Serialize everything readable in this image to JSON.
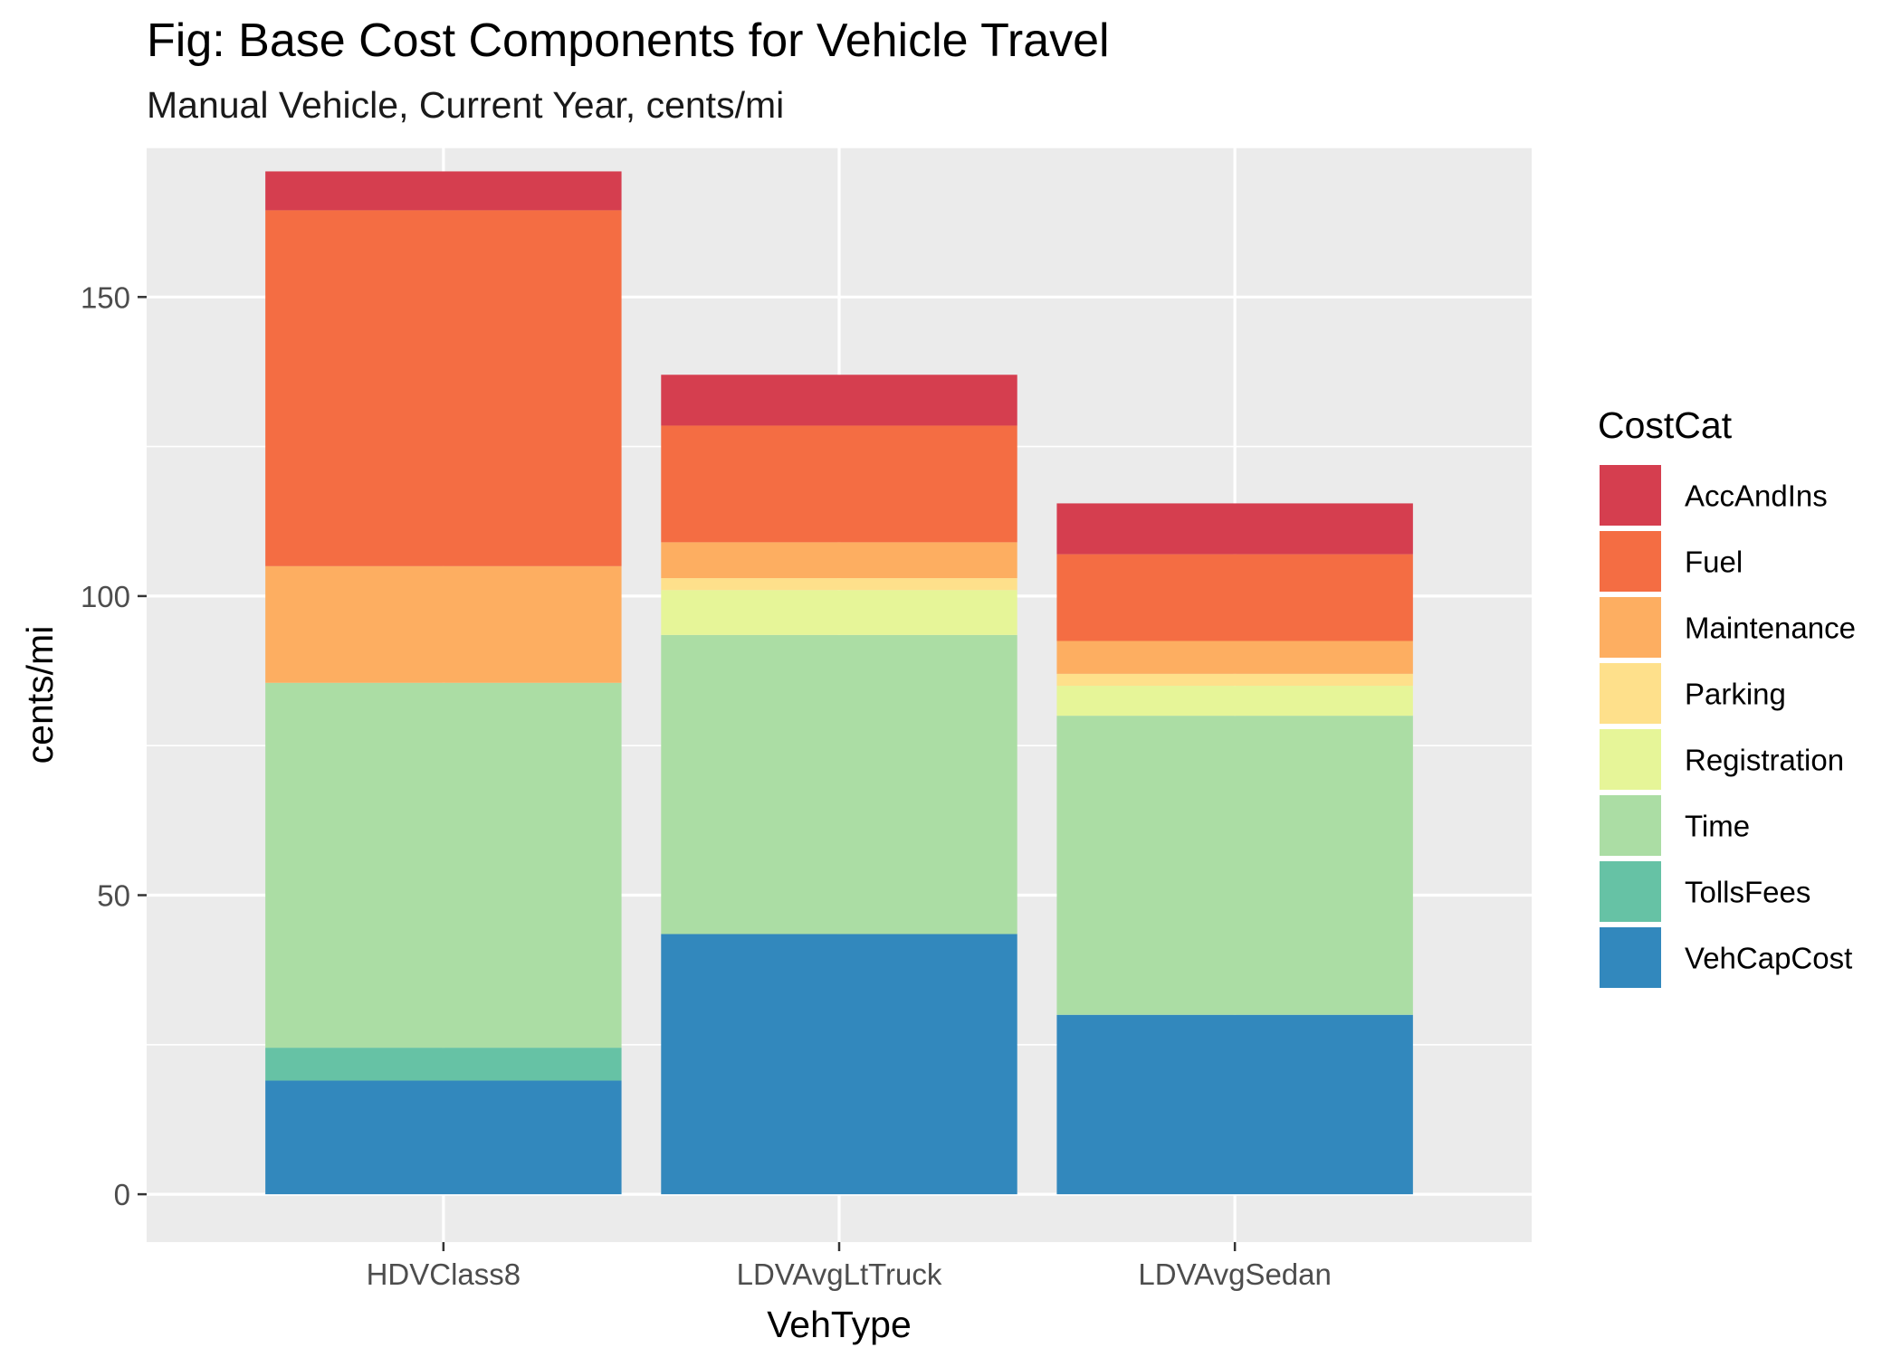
{
  "title": "Fig: Base Cost Components for Vehicle Travel",
  "subtitle": "Manual Vehicle, Current Year, cents/mi",
  "chart_data": {
    "type": "bar",
    "stacked": true,
    "xlabel": "VehType",
    "ylabel": "cents/mi",
    "ylim": [
      -8,
      175
    ],
    "yticks": [
      0,
      50,
      100,
      150
    ],
    "ytick_labels": [
      "0",
      "50",
      "100",
      "150"
    ],
    "grid": true,
    "legend_position": "right",
    "legend_title": "CostCat",
    "categories": [
      "HDVClass8",
      "LDVAvgLtTruck",
      "LDVAvgSedan"
    ],
    "series": [
      {
        "name": "AccAndIns",
        "color": "#D53E4F",
        "values": [
          6.5,
          8.5,
          8.5
        ]
      },
      {
        "name": "Fuel",
        "color": "#F46D43",
        "values": [
          59.5,
          19.5,
          14.5
        ]
      },
      {
        "name": "Maintenance",
        "color": "#FDAE61",
        "values": [
          19.5,
          6.0,
          5.5
        ]
      },
      {
        "name": "Parking",
        "color": "#FEE08B",
        "values": [
          0,
          2.0,
          2.0
        ]
      },
      {
        "name": "Registration",
        "color": "#E6F598",
        "values": [
          0,
          7.5,
          5.0
        ]
      },
      {
        "name": "Time",
        "color": "#ABDDA4",
        "values": [
          61.0,
          50.0,
          50.0
        ]
      },
      {
        "name": "TollsFees",
        "color": "#66C2A5",
        "values": [
          5.5,
          0,
          0
        ]
      },
      {
        "name": "VehCapCost",
        "color": "#3288BD",
        "values": [
          19.0,
          43.5,
          30.0
        ]
      }
    ]
  }
}
